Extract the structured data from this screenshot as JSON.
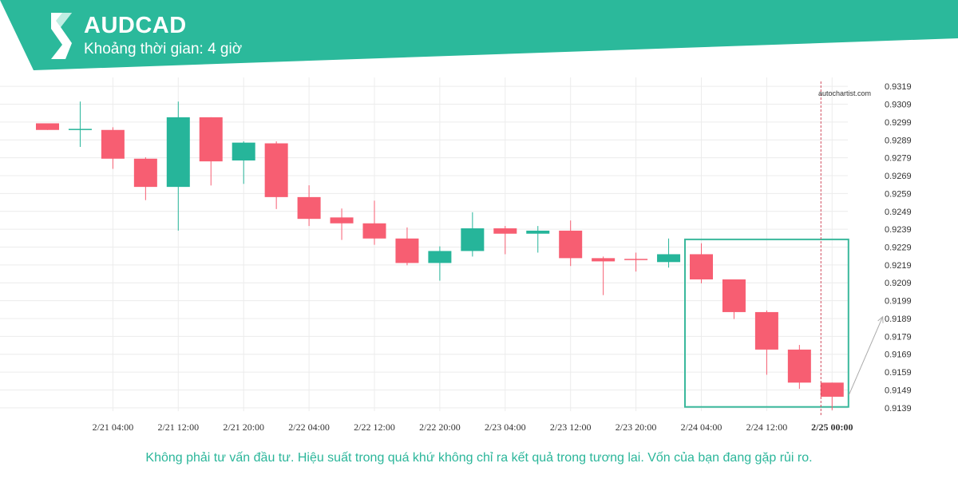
{
  "header": {
    "symbol": "AUDCAD",
    "timeframe": "Khoảng thời gian: 4 giờ",
    "color": "#2bb99b"
  },
  "logo": {
    "icon": "autochartist-logo-icon"
  },
  "watermark": "autochartist.com",
  "disclaimer": "Không phải tư vấn đầu tư. Hiệu suất trong quá khứ không chỉ ra kết quả trong tương lai. Vốn của bạn đang gặp rủi ro.",
  "colors": {
    "up": "#26b59a",
    "down": "#f75e72",
    "highlight": "#3ab89c",
    "grid": "#ececec",
    "arrow": "#aaaaaa",
    "current_line": "#d04a5c"
  },
  "chart_data": {
    "type": "candlestick",
    "ylim": [
      0.9134,
      0.9324
    ],
    "y_ticks": [
      "0.9319",
      "0.9309",
      "0.9299",
      "0.9289",
      "0.9279",
      "0.9269",
      "0.9259",
      "0.9249",
      "0.9239",
      "0.9229",
      "0.9219",
      "0.9209",
      "0.9199",
      "0.9189",
      "0.9179",
      "0.9169",
      "0.9159",
      "0.9149",
      "0.9139"
    ],
    "x_ticks": [
      {
        "index": 2,
        "label": "2/21 04:00"
      },
      {
        "index": 4,
        "label": "2/21 12:00"
      },
      {
        "index": 6,
        "label": "2/21 20:00"
      },
      {
        "index": 8,
        "label": "2/22 04:00"
      },
      {
        "index": 10,
        "label": "2/22 12:00"
      },
      {
        "index": 12,
        "label": "2/22 20:00"
      },
      {
        "index": 14,
        "label": "2/23 04:00"
      },
      {
        "index": 16,
        "label": "2/23 12:00"
      },
      {
        "index": 18,
        "label": "2/23 20:00"
      },
      {
        "index": 20,
        "label": "2/24 04:00"
      },
      {
        "index": 22,
        "label": "2/24 12:00"
      },
      {
        "index": 24,
        "label": "2/25 00:00",
        "bold": true
      }
    ],
    "candles": [
      {
        "open": 0.92983,
        "high": 0.92983,
        "low": 0.92946,
        "close": 0.92946
      },
      {
        "open": 0.92948,
        "high": 0.93105,
        "low": 0.92851,
        "close": 0.92952
      },
      {
        "open": 0.92946,
        "high": 0.92961,
        "low": 0.92728,
        "close": 0.92785
      },
      {
        "open": 0.92785,
        "high": 0.92793,
        "low": 0.92553,
        "close": 0.92627
      },
      {
        "open": 0.92627,
        "high": 0.93105,
        "low": 0.92382,
        "close": 0.93017
      },
      {
        "open": 0.93017,
        "high": 0.93017,
        "low": 0.92635,
        "close": 0.9277
      },
      {
        "open": 0.92775,
        "high": 0.92882,
        "low": 0.92644,
        "close": 0.92875
      },
      {
        "open": 0.92871,
        "high": 0.92882,
        "low": 0.92503,
        "close": 0.9257
      },
      {
        "open": 0.9257,
        "high": 0.92636,
        "low": 0.92408,
        "close": 0.92448
      },
      {
        "open": 0.92456,
        "high": 0.92506,
        "low": 0.9233,
        "close": 0.92423
      },
      {
        "open": 0.92423,
        "high": 0.9255,
        "low": 0.92303,
        "close": 0.92338
      },
      {
        "open": 0.92338,
        "high": 0.924,
        "low": 0.92188,
        "close": 0.92201
      },
      {
        "open": 0.92201,
        "high": 0.92294,
        "low": 0.92102,
        "close": 0.92268
      },
      {
        "open": 0.92268,
        "high": 0.92485,
        "low": 0.92237,
        "close": 0.92395
      },
      {
        "open": 0.92395,
        "high": 0.92408,
        "low": 0.9225,
        "close": 0.92365
      },
      {
        "open": 0.92365,
        "high": 0.92408,
        "low": 0.92259,
        "close": 0.92382
      },
      {
        "open": 0.92382,
        "high": 0.92439,
        "low": 0.92184,
        "close": 0.92228
      },
      {
        "open": 0.92228,
        "high": 0.92237,
        "low": 0.92021,
        "close": 0.9221
      },
      {
        "open": 0.92224,
        "high": 0.92259,
        "low": 0.92153,
        "close": 0.92219
      },
      {
        "open": 0.92206,
        "high": 0.92338,
        "low": 0.92175,
        "close": 0.9225
      },
      {
        "open": 0.9225,
        "high": 0.92311,
        "low": 0.92087,
        "close": 0.92109
      },
      {
        "open": 0.92109,
        "high": 0.92109,
        "low": 0.91887,
        "close": 0.91926
      },
      {
        "open": 0.91926,
        "high": 0.91935,
        "low": 0.91575,
        "close": 0.91716
      },
      {
        "open": 0.91716,
        "high": 0.91742,
        "low": 0.91496,
        "close": 0.91531
      },
      {
        "open": 0.91531,
        "high": 0.91531,
        "low": 0.91377,
        "close": 0.91452
      }
    ],
    "highlight_range": {
      "start_index": 20,
      "end_index": 24,
      "y_top": 0.92333,
      "y_bottom": 0.91395
    },
    "current_index": 24,
    "trend_arrow": {
      "from": {
        "index": 25,
        "value": 0.91461
      },
      "to": {
        "index": 26,
        "value": 0.919
      }
    }
  }
}
